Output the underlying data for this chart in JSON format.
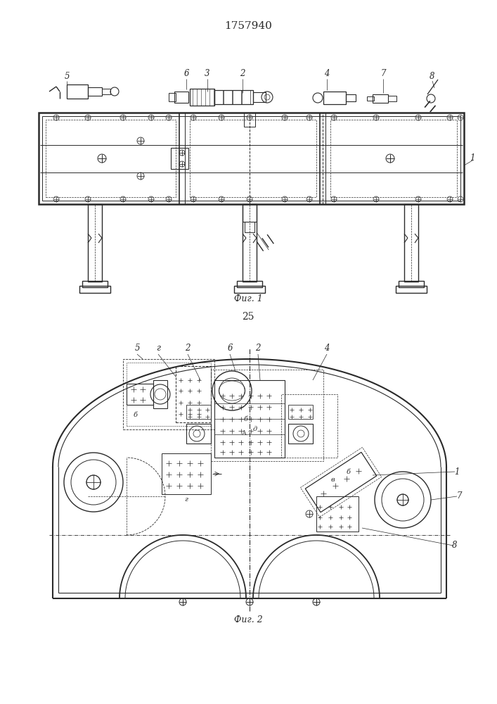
{
  "title": "1757940",
  "fig1_label": "Фиг. 1",
  "fig2_label": "Фиг. 2",
  "page_number": "25",
  "bg_color": "#ffffff",
  "line_color": "#2a2a2a",
  "title_fontsize": 11,
  "label_fontsize": 9,
  "number_fontsize": 8.5
}
